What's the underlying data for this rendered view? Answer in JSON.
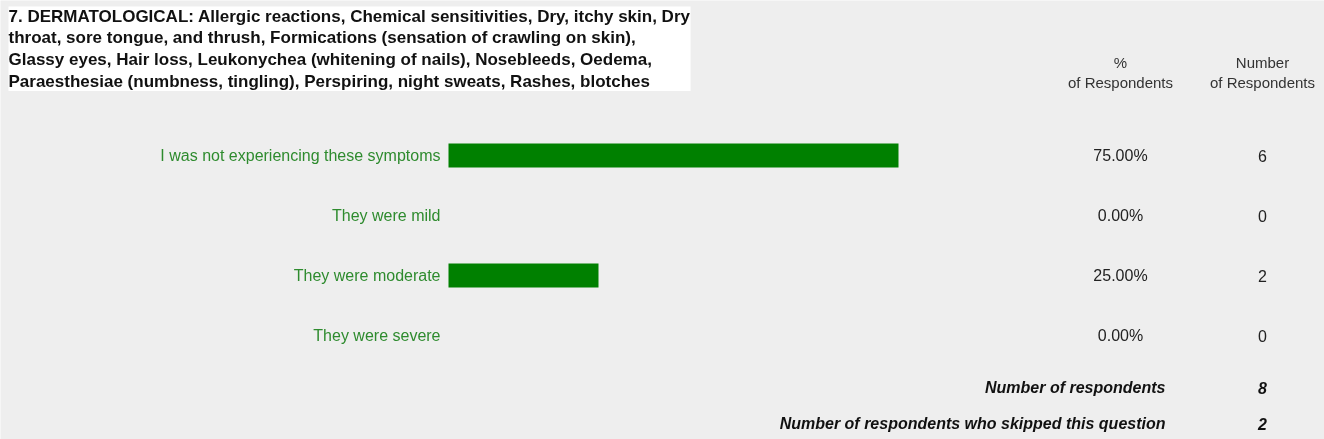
{
  "chart_data": {
    "type": "bar",
    "orientation": "horizontal",
    "title": "7. DERMATOLOGICAL: Allergic reactions, Chemical sensitivities, Dry, itchy skin, Dry throat, sore tongue, and thrush, Formications (sensation of crawling on skin), Glassy eyes, Hair loss, Leukonychea (whitening of nails), Nosebleeds, Oedema, Paraesthesiae (numbness, tingling), Perspiring, night sweats, Rashes, blotches",
    "categories": [
      "I was not experiencing these symptoms",
      "They were mild",
      "They were moderate",
      "They were severe"
    ],
    "values": [
      75,
      0,
      25,
      0
    ],
    "value_labels": [
      "75.00%",
      "0.00%",
      "25.00%",
      "0.00%"
    ],
    "color": "#008000",
    "annotations": [
      "% of Respondents",
      "Number of Respondents",
      "6",
      "0",
      "2",
      "0",
      "Number of respondents",
      "8",
      "Number of respondents who skipped this question",
      "2"
    ]
  }
}
